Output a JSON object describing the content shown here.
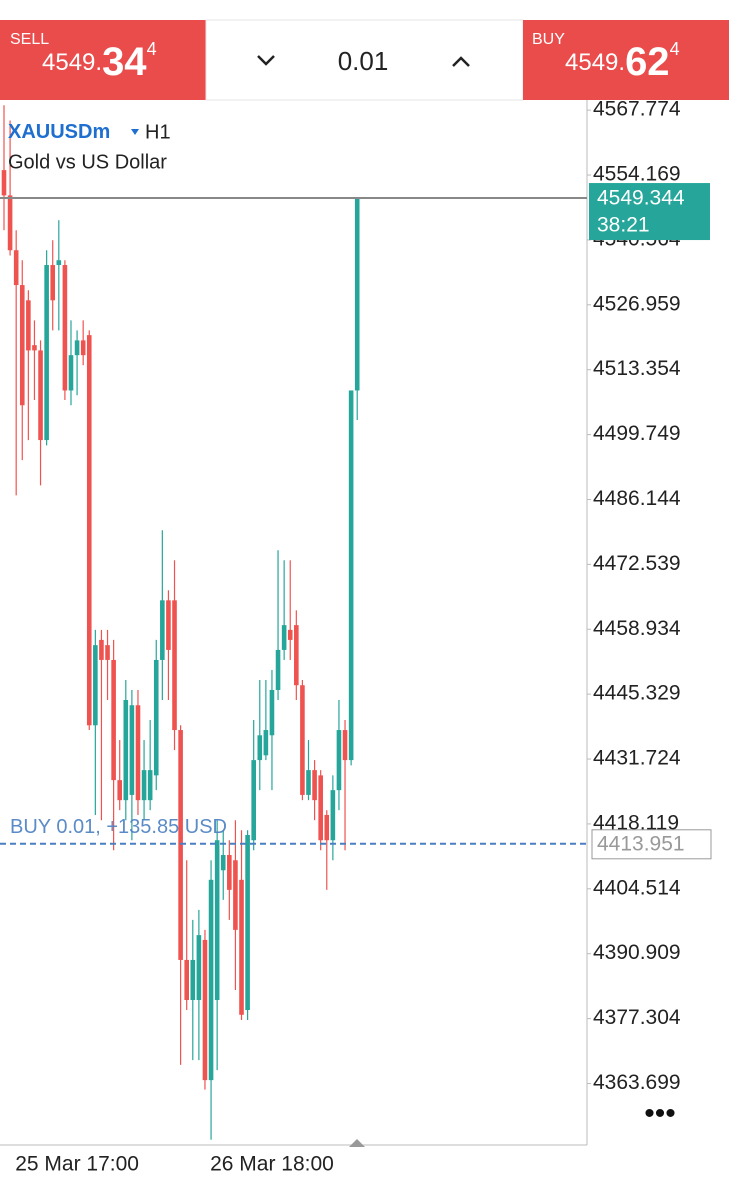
{
  "top_bar": {
    "sell": {
      "label": "SELL",
      "price_main": "4549.",
      "price_big": "34",
      "price_sup": "4"
    },
    "volume": "0.01",
    "buy": {
      "label": "BUY",
      "price_main": "4549.",
      "price_big": "62",
      "price_sup": "4"
    }
  },
  "chart_data": {
    "type": "candlestick",
    "symbol": "XAUUSDm",
    "timeframe": "H1",
    "description": "Gold vs US Dollar",
    "up_color": "#26a69a",
    "down_color": "#ef5350",
    "categories": [
      null,
      null,
      null,
      null,
      null,
      null,
      null,
      null,
      null,
      null,
      null,
      null,
      "25 Mar 17:00",
      null,
      null,
      null,
      null,
      null,
      null,
      null,
      null,
      null,
      null,
      null,
      null,
      null,
      null,
      null,
      null,
      null,
      null,
      null,
      null,
      null,
      null,
      null,
      null,
      null,
      null,
      null,
      null,
      null,
      null,
      null,
      "26 Mar 18:00",
      null,
      null,
      null,
      null,
      null,
      null,
      null,
      null,
      null,
      null,
      null,
      null,
      null,
      null
    ],
    "open": [
      4555.2,
      4549.9,
      4538.4,
      4531.1,
      4527.9,
      4518.5,
      4517.4,
      4498.6,
      4535.3,
      4535.3,
      4535.3,
      4509.0,
      4516.4,
      4519.5,
      4520.6,
      4438.8,
      4456.7,
      4455.6,
      4452.5,
      4427.3,
      4423.1,
      4424.2,
      4443.0,
      4423.1,
      4423.1,
      4428.3,
      4452.5,
      4465.0,
      4465.0,
      4437.8,
      4389.6,
      4381.2,
      4381.2,
      4393.8,
      4364.4,
      4381.2,
      4408.4,
      4411.6,
      4410.5,
      4406.4,
      4379.1,
      4414.7,
      4431.5,
      4432.5,
      4436.7,
      4446.2,
      4454.6,
      4458.8,
      4459.8,
      4447.2,
      4424.2,
      4429.4,
      4428.3,
      4420.0,
      4414.7,
      4425.2,
      4437.8,
      4431.5,
      4509.0
    ],
    "high": [
      4568.8,
      4565.6,
      4542.6,
      4536.3,
      4530.0,
      4523.7,
      4519.5,
      4538.4,
      4540.5,
      4544.7,
      4536.3,
      4523.7,
      4521.6,
      4523.7,
      4521.6,
      4458.8,
      4458.8,
      4458.8,
      4456.7,
      4435.7,
      4448.3,
      4446.2,
      4446.2,
      4435.7,
      4439.9,
      4456.7,
      4479.7,
      4467.1,
      4473.4,
      4438.8,
      4410.5,
      4398.0,
      4400.1,
      4395.9,
      4410.5,
      4418.9,
      4416.8,
      4414.7,
      4418.9,
      4416.8,
      4416.8,
      4439.9,
      4448.3,
      4448.3,
      4450.4,
      4475.5,
      4473.4,
      4473.4,
      4462.9,
      4448.3,
      4435.7,
      4431.5,
      4429.4,
      4421.0,
      4428.3,
      4444.1,
      4439.9,
      4509.0,
      4549.5
    ],
    "low": [
      4542.6,
      4537.3,
      4487.0,
      4494.4,
      4498.6,
      4507.0,
      4489.1,
      4497.5,
      4521.6,
      4521.6,
      4507.0,
      4505.9,
      4508.0,
      4514.3,
      4437.8,
      4420.0,
      4418.9,
      4444.1,
      4412.6,
      4421.0,
      4418.9,
      4414.7,
      4420.0,
      4418.9,
      4421.0,
      4425.2,
      4444.1,
      4444.1,
      4433.6,
      4367.6,
      4379.1,
      4368.6,
      4368.6,
      4362.4,
      4351.9,
      4366.5,
      4402.2,
      4398.0,
      4383.3,
      4377.0,
      4377.0,
      4412.6,
      4425.2,
      4431.5,
      4425.2,
      4444.1,
      4452.5,
      4452.5,
      4444.1,
      4423.1,
      4423.1,
      4418.9,
      4412.6,
      4404.3,
      4410.5,
      4421.0,
      4412.6,
      4430.4,
      4502.8
    ],
    "close": [
      4549.9,
      4538.4,
      4531.1,
      4505.9,
      4517.4,
      4517.4,
      4498.6,
      4535.3,
      4527.9,
      4536.3,
      4509.0,
      4516.4,
      4519.5,
      4516.4,
      4438.8,
      4455.6,
      4452.5,
      4452.5,
      4427.3,
      4423.1,
      4444.1,
      4443.0,
      4423.1,
      4429.4,
      4429.4,
      4452.5,
      4465.0,
      4454.6,
      4437.8,
      4389.6,
      4381.2,
      4389.6,
      4394.8,
      4364.4,
      4406.4,
      4414.7,
      4411.6,
      4404.3,
      4395.9,
      4378.1,
      4415.8,
      4431.5,
      4436.7,
      4437.8,
      4446.2,
      4454.6,
      4459.8,
      4456.7,
      4447.2,
      4424.2,
      4429.4,
      4423.1,
      4414.7,
      4414.7,
      4425.2,
      4437.8,
      4431.5,
      4509.0,
      4549.344
    ],
    "ylim": [
      4350.8,
      4569.9
    ],
    "yticks": [
      4567.774,
      4554.169,
      4540.564,
      4526.959,
      4513.354,
      4499.749,
      4486.144,
      4472.539,
      4458.934,
      4445.329,
      4431.724,
      4418.119,
      4404.514,
      4390.909,
      4377.304,
      4363.699
    ],
    "current_price": 4549.344,
    "countdown": "38:21",
    "position": {
      "label": "BUY 0.01, +135.85 USD",
      "price": 4413.951
    }
  }
}
